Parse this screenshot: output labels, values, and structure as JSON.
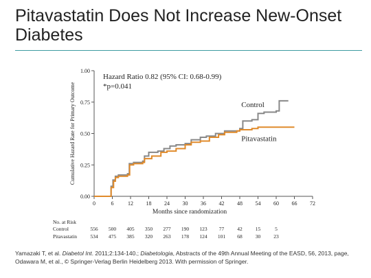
{
  "slide": {
    "title": "Pitavastatin Does Not Increase New-Onset Diabetes",
    "accent_color": "#3d9aa0"
  },
  "citation": {
    "part1": "Yamazaki T, et al. ",
    "journal1": "Diabetol Int",
    "part2": ". 2011;2:134-140.; ",
    "journal2": "Diabetologia",
    "part3": ", Abstracts of the 49th Annual Meeting of the EASD, 56, 2013, page, Odawara M, et al., © Springer-Verlag Berlin Heidelberg 2013. With permission of Springer."
  },
  "chart_data": {
    "type": "line",
    "subtype": "step",
    "xlabel": "Months since randomization",
    "ylabel": "Cumulative Hazard Rate for Primary Outcome",
    "xlim": [
      0,
      72
    ],
    "ylim": [
      0,
      1.0
    ],
    "xticks": [
      0,
      6,
      12,
      18,
      24,
      30,
      36,
      42,
      48,
      54,
      60,
      66,
      72
    ],
    "yticks": [
      "0.00",
      "0.25",
      "0.50",
      "0.75",
      "1.00"
    ],
    "annotations": [
      "Hazard Ratio 0.82 (95% CI: 0.68-0.99)",
      "*p=0.041"
    ],
    "series": [
      {
        "name": "Control",
        "color": "#888888",
        "points": [
          [
            0,
            0
          ],
          [
            5,
            0
          ],
          [
            5.6,
            0.08
          ],
          [
            6.2,
            0.13
          ],
          [
            7,
            0.16
          ],
          [
            8,
            0.17
          ],
          [
            11,
            0.18
          ],
          [
            11.6,
            0.26
          ],
          [
            13,
            0.27
          ],
          [
            16,
            0.28
          ],
          [
            16.6,
            0.32
          ],
          [
            18,
            0.35
          ],
          [
            21,
            0.36
          ],
          [
            23,
            0.38
          ],
          [
            25,
            0.4
          ],
          [
            27,
            0.41
          ],
          [
            30,
            0.42
          ],
          [
            32,
            0.45
          ],
          [
            35,
            0.47
          ],
          [
            37,
            0.48
          ],
          [
            40,
            0.5
          ],
          [
            43,
            0.52
          ],
          [
            48,
            0.54
          ],
          [
            49,
            0.6
          ],
          [
            52,
            0.61
          ],
          [
            54,
            0.66
          ],
          [
            56,
            0.67
          ],
          [
            60,
            0.68
          ],
          [
            61,
            0.76
          ],
          [
            64,
            0.76
          ]
        ]
      },
      {
        "name": "Pitavastatin",
        "color": "#e08a2a",
        "points": [
          [
            0,
            0
          ],
          [
            5,
            0
          ],
          [
            5.6,
            0.07
          ],
          [
            6.4,
            0.12
          ],
          [
            7,
            0.15
          ],
          [
            8,
            0.16
          ],
          [
            11,
            0.17
          ],
          [
            11.7,
            0.25
          ],
          [
            13,
            0.26
          ],
          [
            16,
            0.27
          ],
          [
            16.6,
            0.3
          ],
          [
            19,
            0.32
          ],
          [
            22,
            0.35
          ],
          [
            24,
            0.36
          ],
          [
            27,
            0.38
          ],
          [
            30,
            0.41
          ],
          [
            32,
            0.43
          ],
          [
            35,
            0.44
          ],
          [
            38,
            0.47
          ],
          [
            41,
            0.49
          ],
          [
            43,
            0.51
          ],
          [
            47,
            0.52
          ],
          [
            48,
            0.53
          ],
          [
            52,
            0.54
          ],
          [
            54,
            0.55
          ],
          [
            58,
            0.55
          ],
          [
            66,
            0.55
          ]
        ]
      }
    ],
    "risk_table": {
      "title": "No. at Risk",
      "rows": [
        {
          "label": "Control",
          "values": [
            "556",
            "500",
            "405",
            "350",
            "277",
            "190",
            "123",
            "77",
            "42",
            "15",
            "5"
          ]
        },
        {
          "label": "Pitavastatin",
          "values": [
            "534",
            "475",
            "385",
            "320",
            "263",
            "178",
            "124",
            "101",
            "68",
            "30",
            "23"
          ]
        }
      ]
    }
  }
}
